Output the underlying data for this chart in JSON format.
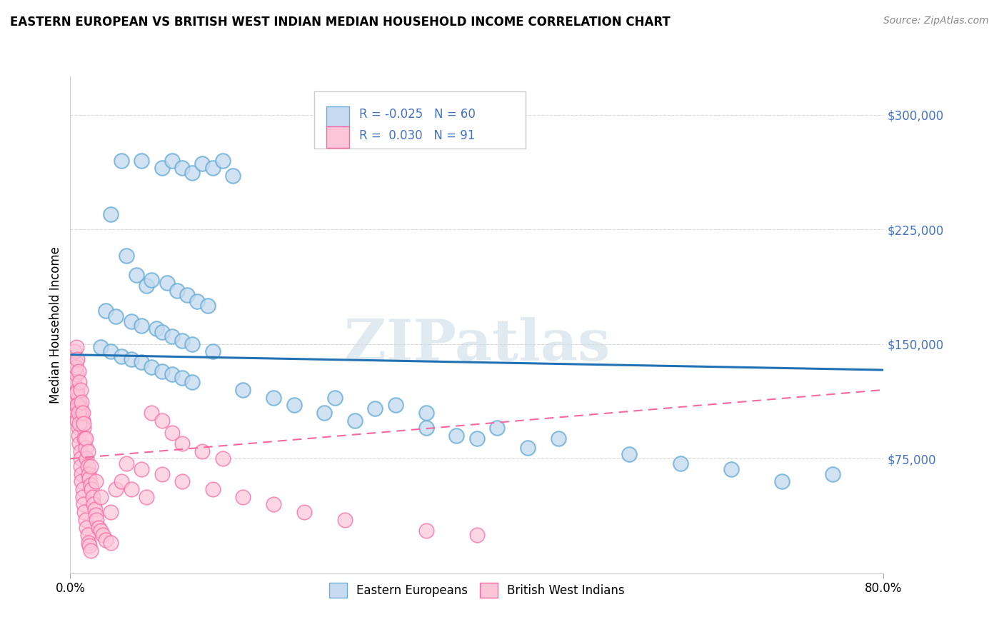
{
  "title": "EASTERN EUROPEAN VS BRITISH WEST INDIAN MEDIAN HOUSEHOLD INCOME CORRELATION CHART",
  "source": "Source: ZipAtlas.com",
  "ylabel": "Median Household Income",
  "xlim": [
    0.0,
    80.0
  ],
  "ylim": [
    0,
    325000
  ],
  "blue_R": -0.025,
  "blue_N": 60,
  "pink_R": 0.03,
  "pink_N": 91,
  "blue_label": "Eastern Europeans",
  "pink_label": "British West Indians",
  "blue_edge_color": "#6baed6",
  "blue_face_color": "#c6dbef",
  "pink_edge_color": "#f768a1",
  "pink_face_color": "#fcc5d8",
  "blue_line_color": "#2171b5",
  "pink_line_color": "#f768a1",
  "background_color": "#ffffff",
  "grid_color": "#d0d0d0",
  "watermark": "ZIPatlas",
  "blue_trend_x": [
    0,
    80
  ],
  "blue_trend_y": [
    143000,
    133000
  ],
  "pink_trend_x": [
    0,
    80
  ],
  "pink_trend_y": [
    75000,
    120000
  ],
  "blue_scatter_x": [
    5.0,
    7.0,
    9.0,
    10.0,
    11.0,
    12.0,
    13.0,
    14.0,
    15.0,
    16.0,
    4.0,
    5.5,
    6.5,
    7.5,
    8.0,
    9.5,
    10.5,
    11.5,
    12.5,
    13.5,
    3.5,
    4.5,
    6.0,
    7.0,
    8.5,
    9.0,
    10.0,
    11.0,
    12.0,
    14.0,
    3.0,
    4.0,
    5.0,
    6.0,
    7.0,
    8.0,
    9.0,
    10.0,
    11.0,
    12.0,
    17.0,
    20.0,
    22.0,
    25.0,
    28.0,
    32.0,
    35.0,
    38.0,
    42.0,
    48.0,
    26.0,
    30.0,
    35.0,
    40.0,
    45.0,
    55.0,
    60.0,
    65.0,
    70.0,
    75.0
  ],
  "blue_scatter_y": [
    270000,
    270000,
    265000,
    270000,
    265000,
    262000,
    268000,
    265000,
    270000,
    260000,
    235000,
    208000,
    195000,
    188000,
    192000,
    190000,
    185000,
    182000,
    178000,
    175000,
    172000,
    168000,
    165000,
    162000,
    160000,
    158000,
    155000,
    152000,
    150000,
    145000,
    148000,
    145000,
    142000,
    140000,
    138000,
    135000,
    132000,
    130000,
    128000,
    125000,
    120000,
    115000,
    110000,
    105000,
    100000,
    110000,
    105000,
    90000,
    95000,
    88000,
    115000,
    108000,
    95000,
    88000,
    82000,
    78000,
    72000,
    68000,
    60000,
    65000
  ],
  "pink_scatter_x": [
    0.3,
    0.4,
    0.5,
    0.5,
    0.6,
    0.6,
    0.7,
    0.7,
    0.8,
    0.8,
    0.8,
    0.9,
    0.9,
    1.0,
    1.0,
    1.0,
    1.0,
    1.1,
    1.1,
    1.1,
    1.2,
    1.2,
    1.2,
    1.3,
    1.3,
    1.4,
    1.4,
    1.5,
    1.5,
    1.6,
    1.6,
    1.7,
    1.7,
    1.8,
    1.8,
    1.9,
    1.9,
    2.0,
    2.0,
    2.1,
    2.2,
    2.3,
    2.4,
    2.5,
    2.6,
    2.8,
    3.0,
    3.2,
    3.5,
    4.0,
    4.5,
    5.0,
    6.0,
    7.5,
    8.0,
    9.0,
    10.0,
    11.0,
    13.0,
    15.0,
    0.4,
    0.5,
    0.6,
    0.6,
    0.7,
    0.7,
    0.8,
    0.8,
    0.9,
    0.9,
    1.0,
    1.1,
    1.2,
    1.3,
    1.5,
    1.7,
    2.0,
    2.5,
    3.0,
    4.0,
    5.5,
    7.0,
    9.0,
    11.0,
    14.0,
    17.0,
    20.0,
    23.0,
    27.0,
    35.0,
    40.0
  ],
  "pink_scatter_y": [
    125000,
    115000,
    138000,
    108000,
    130000,
    105000,
    120000,
    100000,
    115000,
    95000,
    90000,
    112000,
    85000,
    108000,
    80000,
    75000,
    70000,
    105000,
    65000,
    60000,
    100000,
    55000,
    50000,
    95000,
    45000,
    88000,
    40000,
    82000,
    35000,
    75000,
    30000,
    70000,
    25000,
    65000,
    20000,
    62000,
    18000,
    58000,
    15000,
    55000,
    50000,
    45000,
    42000,
    38000,
    35000,
    30000,
    28000,
    25000,
    22000,
    20000,
    55000,
    60000,
    55000,
    50000,
    105000,
    100000,
    92000,
    85000,
    80000,
    75000,
    145000,
    135000,
    148000,
    118000,
    140000,
    110000,
    132000,
    105000,
    125000,
    98000,
    120000,
    112000,
    105000,
    98000,
    88000,
    80000,
    70000,
    60000,
    50000,
    40000,
    72000,
    68000,
    65000,
    60000,
    55000,
    50000,
    45000,
    40000,
    35000,
    28000,
    25000
  ]
}
